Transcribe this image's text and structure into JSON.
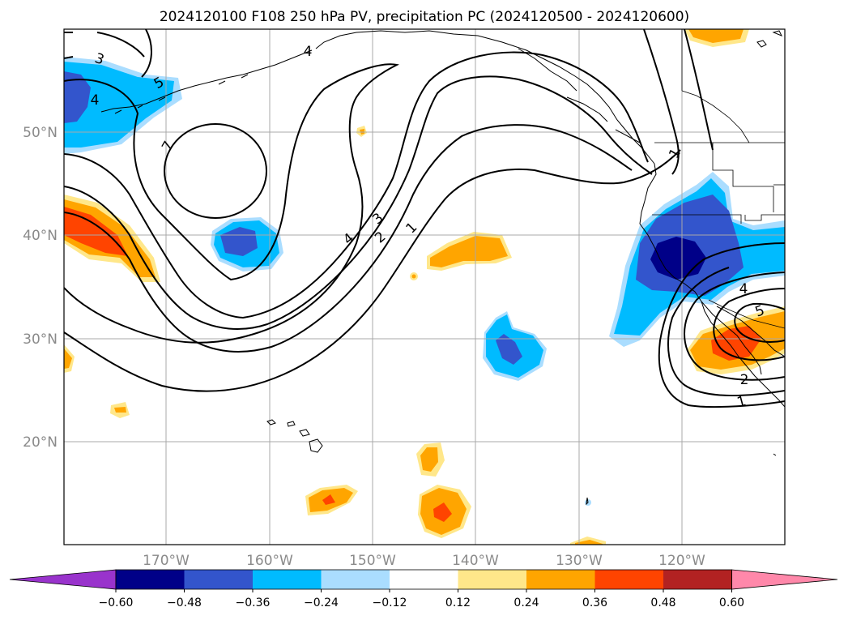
{
  "title": "2024120100 F108 250 hPa PV, precipitation PC (2024120500 - 2024120600)",
  "lat_labels": [
    "50°N",
    "40°N",
    "30°N",
    "20°N"
  ],
  "lon_labels": [
    "170°W",
    "160°W",
    "150°W",
    "140°W",
    "130°W",
    "120°W"
  ],
  "contour_labels": [
    "3",
    "5",
    "4",
    "7",
    "4",
    "3",
    "2",
    "1",
    "1",
    "4",
    "5",
    "2",
    "1",
    "4"
  ],
  "colorbar": {
    "ticks": [
      "−0.60",
      "−0.48",
      "−0.36",
      "−0.24",
      "−0.12",
      "0.12",
      "0.24",
      "0.36",
      "0.48",
      "0.60"
    ],
    "colors": [
      "#9933cc",
      "#000088",
      "#3355cc",
      "#00bbff",
      "#aaddff",
      "#ffffff",
      "#ffe78a",
      "#ffa500",
      "#ff4400",
      "#b22222",
      "#ff88aa"
    ]
  },
  "map_data": {
    "extent_lon": [
      -180,
      -110
    ],
    "extent_lat": [
      10,
      60
    ],
    "gridlines": true,
    "field": "precipitation PC",
    "overlay": "250 hPa PV contours"
  }
}
